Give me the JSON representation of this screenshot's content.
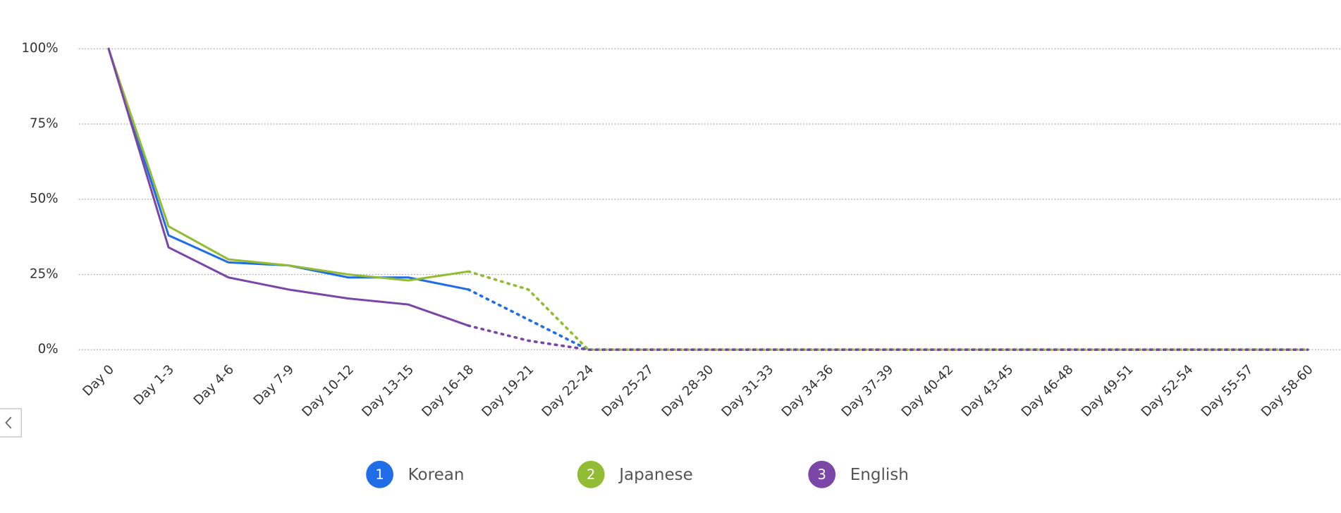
{
  "chart_data": {
    "type": "line",
    "categories": [
      "Day 0",
      "Day 1-3",
      "Day 4-6",
      "Day 7-9",
      "Day 10-12",
      "Day 13-15",
      "Day 16-18",
      "Day 19-21",
      "Day 22-24",
      "Day 25-27",
      "Day 28-30",
      "Day 31-33",
      "Day 34-36",
      "Day 37-39",
      "Day 40-42",
      "Day 43-45",
      "Day 46-48",
      "Day 49-51",
      "Day 52-54",
      "Day 55-57",
      "Day 58-60"
    ],
    "dotted_after": "Day 16-18",
    "series": [
      {
        "name": "Korean",
        "badge": "1",
        "color": "#1f6ee8",
        "values": [
          100,
          38,
          29,
          28,
          24,
          24,
          20,
          10,
          0,
          0,
          0,
          0,
          0,
          0,
          0,
          0,
          0,
          0,
          0,
          0,
          0
        ]
      },
      {
        "name": "Japanese",
        "badge": "2",
        "color": "#93bc35",
        "values": [
          100,
          41,
          30,
          28,
          25,
          23,
          26,
          20,
          0,
          0,
          0,
          0,
          0,
          0,
          0,
          0,
          0,
          0,
          0,
          0,
          0
        ]
      },
      {
        "name": "English",
        "badge": "3",
        "color": "#7c46a8",
        "values": [
          100,
          34,
          24,
          20,
          17,
          15,
          8,
          3,
          0,
          0,
          0,
          0,
          0,
          0,
          0,
          0,
          0,
          0,
          0,
          0,
          0
        ]
      }
    ],
    "ylim": [
      0,
      100
    ],
    "yticks": [
      {
        "value": 0,
        "label": "0%"
      },
      {
        "value": 25,
        "label": "25%"
      },
      {
        "value": 50,
        "label": "50%"
      },
      {
        "value": 75,
        "label": "75%"
      },
      {
        "value": 100,
        "label": "100%"
      }
    ],
    "grid": true
  }
}
